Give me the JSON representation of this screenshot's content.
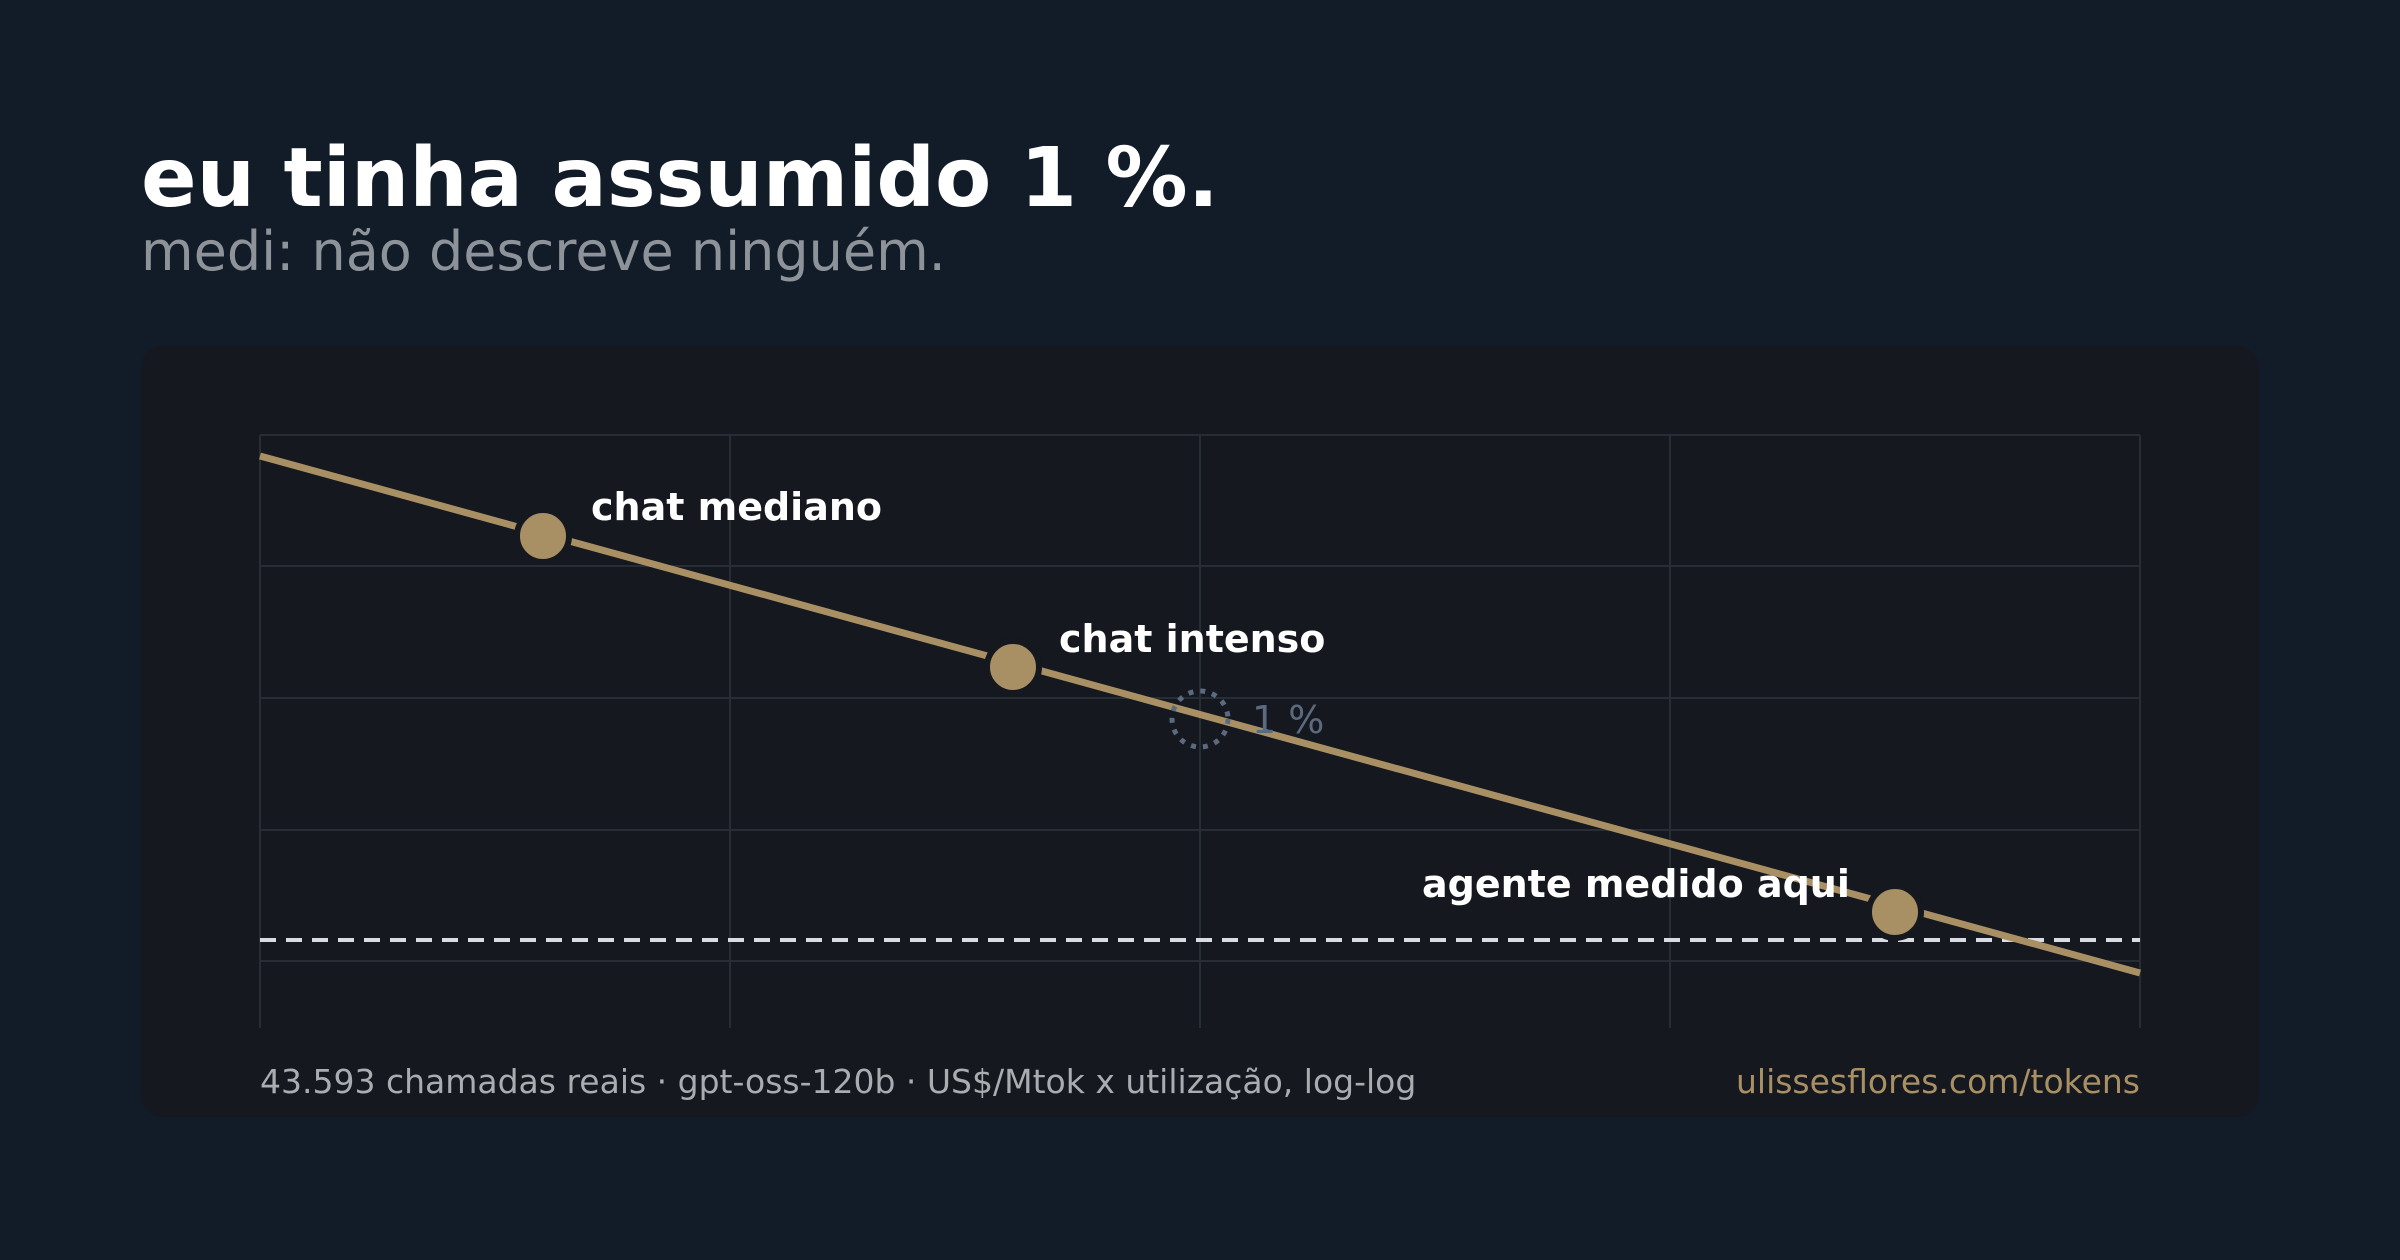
{
  "header": {
    "title": "eu tinha assumido 1 %.",
    "subtitle": "medi: não descreve ninguém."
  },
  "annotations": {
    "points": [
      "chat mediano",
      "chat intenso",
      "agente medido aqui"
    ],
    "reference": "1 %"
  },
  "footer": {
    "source": "43.593 chamadas reais · gpt-oss-120b · US$/Mtok x utilização, log-log",
    "link": "ulissesflores.com/tokens"
  }
}
